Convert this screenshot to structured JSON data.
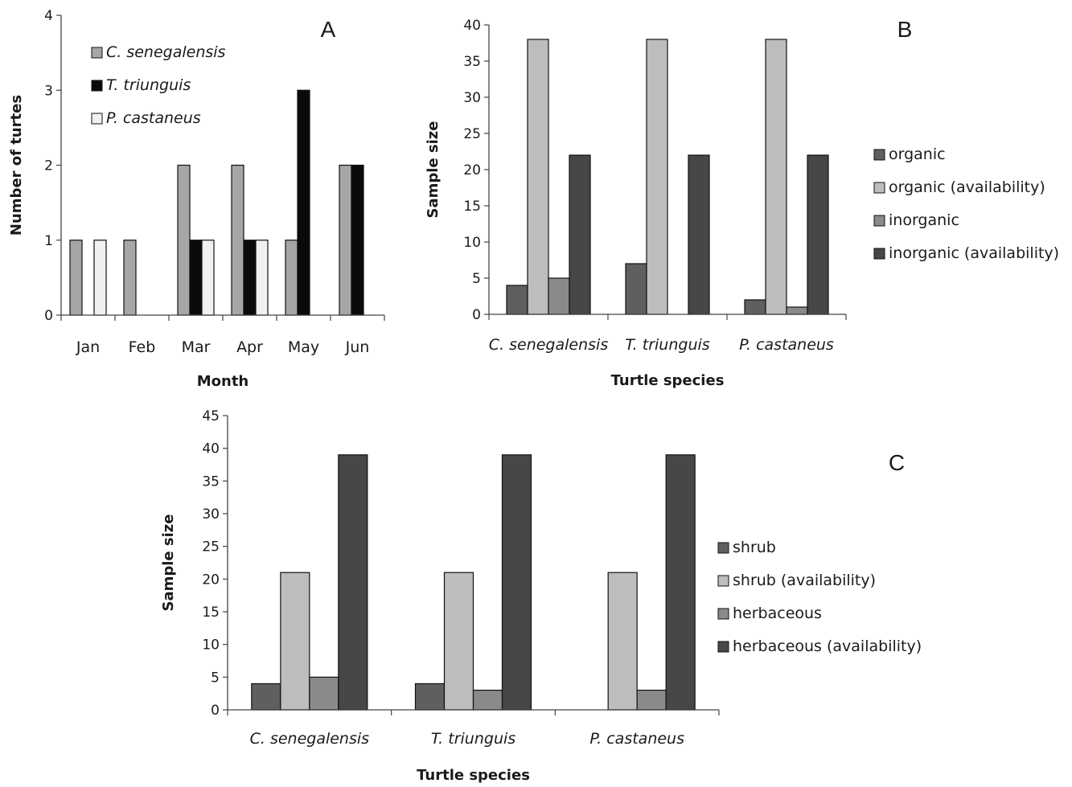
{
  "chart_data": [
    {
      "panel": "A",
      "type": "bar",
      "xlabel": "Month",
      "ylabel": "Number of turtes",
      "ylim": [
        0,
        4
      ],
      "yticks": [
        0,
        1,
        2,
        3,
        4
      ],
      "categories": [
        "Jan",
        "Feb",
        "Mar",
        "Apr",
        "May",
        "Jun"
      ],
      "series": [
        {
          "name": "C. senegalensis",
          "color": "#a6a6a6",
          "values": [
            1,
            1,
            2,
            2,
            1,
            2
          ]
        },
        {
          "name": "T. triunguis",
          "color": "#0a0a0a",
          "values": [
            0,
            0,
            1,
            1,
            3,
            2
          ]
        },
        {
          "name": "P. castaneus",
          "color": "#f0f0f0",
          "values": [
            1,
            0,
            1,
            1,
            0,
            0
          ]
        }
      ],
      "legend_position": "top-left",
      "grid": false
    },
    {
      "panel": "B",
      "type": "bar",
      "xlabel": "Turtle species",
      "ylabel": "Sample size",
      "ylim": [
        0,
        40
      ],
      "yticks": [
        0,
        5,
        10,
        15,
        20,
        25,
        30,
        35,
        40
      ],
      "categories": [
        "C. senegalensis",
        "T. triunguis",
        "P. castaneus"
      ],
      "series": [
        {
          "name": "organic",
          "color": "#5f5f5f",
          "values": [
            4,
            7,
            2
          ]
        },
        {
          "name": "organic (availability)",
          "color": "#bdbdbd",
          "values": [
            38,
            38,
            38
          ]
        },
        {
          "name": "inorganic",
          "color": "#8a8a8a",
          "values": [
            5,
            0,
            1
          ]
        },
        {
          "name": "inorganic (availability)",
          "color": "#474747",
          "values": [
            22,
            22,
            22
          ]
        }
      ],
      "legend_position": "right",
      "grid": false
    },
    {
      "panel": "C",
      "type": "bar",
      "xlabel": "Turtle species",
      "ylabel": "Sample size",
      "ylim": [
        0,
        45
      ],
      "yticks": [
        0,
        5,
        10,
        15,
        20,
        25,
        30,
        35,
        40,
        45
      ],
      "categories": [
        "C. senegalensis",
        "T. triunguis",
        "P. castaneus"
      ],
      "series": [
        {
          "name": "shrub",
          "color": "#5f5f5f",
          "values": [
            4,
            4,
            0
          ]
        },
        {
          "name": "shrub (availability)",
          "color": "#bdbdbd",
          "values": [
            21,
            21,
            21
          ]
        },
        {
          "name": "herbaceous",
          "color": "#8a8a8a",
          "values": [
            5,
            3,
            3
          ]
        },
        {
          "name": "herbaceous (availability)",
          "color": "#474747",
          "values": [
            39,
            39,
            39
          ]
        }
      ],
      "legend_position": "right",
      "grid": false
    }
  ]
}
